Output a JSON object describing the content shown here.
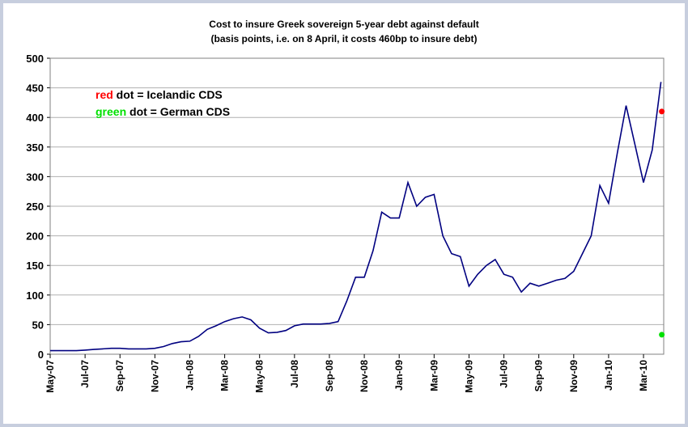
{
  "chart_data": {
    "type": "line",
    "title": "Cost to insure Greek sovereign 5-year debt against default",
    "subtitle": "(basis points, i.e. on 8 April, it costs 460bp to insure debt)",
    "categories": [
      "May-07",
      null,
      null,
      null,
      "Jul-07",
      null,
      null,
      null,
      "Sep-07",
      null,
      null,
      null,
      "Nov-07",
      null,
      null,
      null,
      "Jan-08",
      null,
      null,
      null,
      "Mar-08",
      null,
      null,
      null,
      "May-08",
      null,
      null,
      null,
      "Jul-08",
      null,
      null,
      null,
      "Sep-08",
      null,
      null,
      null,
      "Nov-08",
      null,
      null,
      null,
      "Jan-09",
      null,
      null,
      null,
      "Mar-09",
      null,
      null,
      null,
      "May-09",
      null,
      null,
      null,
      "Jul-09",
      null,
      null,
      null,
      "Sep-09",
      null,
      null,
      null,
      "Nov-09",
      null,
      null,
      null,
      "Jan-10",
      null,
      null,
      null,
      "Mar-10",
      null,
      null
    ],
    "series": [
      {
        "color": "#000080",
        "values": [
          6,
          6,
          6,
          6,
          7,
          8,
          9,
          10,
          10,
          9,
          9,
          9,
          10,
          13,
          18,
          21,
          22,
          30,
          42,
          48,
          55,
          60,
          63,
          58,
          44,
          36,
          37,
          40,
          48,
          51,
          51,
          51,
          52,
          55,
          90,
          130,
          130,
          175,
          240,
          230,
          230,
          290,
          250,
          265,
          270,
          200,
          170,
          165,
          115,
          135,
          150,
          160,
          135,
          130,
          105,
          120,
          115,
          120,
          125,
          128,
          140,
          170,
          200,
          285,
          255,
          340,
          420,
          355,
          290,
          345,
          460
        ]
      }
    ],
    "markers": [
      {
        "word": "red",
        "text": " dot = Icelandic CDS",
        "color": "#ff0000",
        "value": 410
      },
      {
        "word": "green",
        "text": " dot = German CDS",
        "color": "#00e000",
        "value": 33
      }
    ],
    "ylim": [
      0,
      500
    ],
    "yticks": [
      0,
      50,
      100,
      150,
      200,
      250,
      300,
      350,
      400,
      450,
      500
    ],
    "grid": true
  }
}
